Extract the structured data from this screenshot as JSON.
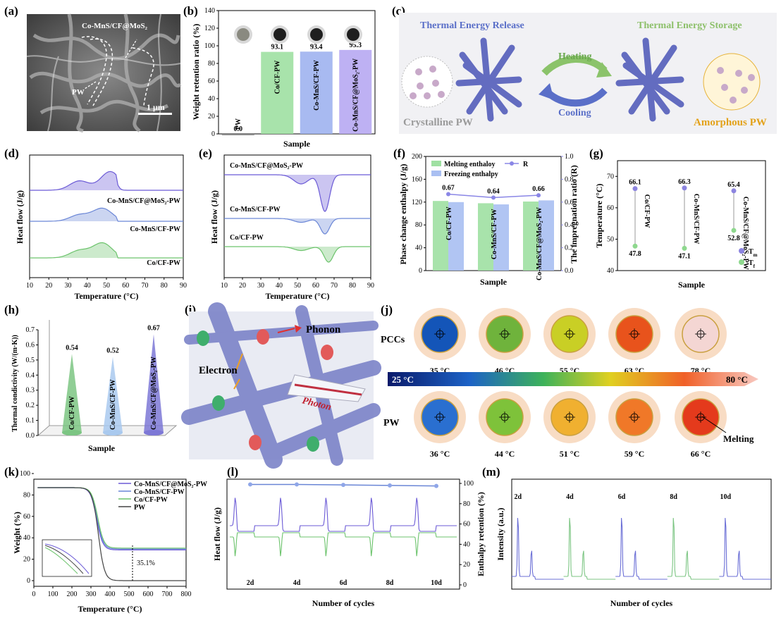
{
  "panel_labels": [
    "(a)",
    "(b)",
    "(c)",
    "(d)",
    "(e)",
    "(f)",
    "(g)",
    "(h)",
    "(i)",
    "(j)",
    "(k)",
    "(l)",
    "(m)"
  ],
  "a": {
    "label": "Co-MnS/CF@MoS₂",
    "pw": "PW",
    "scale": "1 μm"
  },
  "b": {
    "type": "bar",
    "ylabel": "Weight retention ratio (%)",
    "xlabel": "Sample",
    "categories": [
      "PW",
      "Co/CF-PW",
      "Co-MnS/CF-PW",
      "Co-MnS/CF@MoS₂-PW"
    ],
    "values": [
      0.0,
      93.1,
      93.4,
      95.3
    ],
    "value_labels": [
      "0.0",
      "93.1",
      "93.4",
      "95.3"
    ],
    "ylim": [
      0,
      140
    ],
    "yticks": [
      "0",
      "20",
      "40",
      "60",
      "80",
      "100",
      "120",
      "140"
    ],
    "colors": [
      "#888888",
      "#9fe0a2",
      "#9fb2f0",
      "#b7a9f2"
    ]
  },
  "c": {
    "release": "Thermal Energy Release",
    "storage": "Thermal Energy Storage",
    "heating": "Heating",
    "cooling": "Cooling",
    "crystalline": "Crystalline PW",
    "amorphous": "Amorphous PW",
    "colors": {
      "release": "#5a6fc8",
      "storage": "#8dc06a",
      "amorphous": "#e3a21a",
      "crystalline": "#9a9a9a"
    }
  },
  "d": {
    "type": "line",
    "ylabel": "Heat flow (J/g)",
    "xlabel": "Temperature (°C)",
    "xlim": [
      10,
      90
    ],
    "xticks": [
      "10",
      "20",
      "30",
      "40",
      "50",
      "60",
      "70",
      "80",
      "90"
    ],
    "series": [
      {
        "name": "Co-MnS/CF@MoS₂-PW",
        "peak_T": 52,
        "color": "#6b5ad6"
      },
      {
        "name": "Co-MnS/CF-PW",
        "peak_T": 48,
        "color": "#6a86d6"
      },
      {
        "name": "Co/CF-PW",
        "peak_T": 48,
        "color": "#6cc36c"
      }
    ]
  },
  "e": {
    "type": "line",
    "ylabel": "Heat flow (J/g)",
    "xlabel": "Temperature (°C)",
    "xlim": [
      10,
      90
    ],
    "xticks": [
      "10",
      "20",
      "30",
      "40",
      "50",
      "60",
      "70",
      "80",
      "90"
    ],
    "series": [
      {
        "name": "Co-MnS/CF@MoS₂-PW",
        "peak_T": 65,
        "color": "#6b5ad6"
      },
      {
        "name": "Co-MnS/CF-PW",
        "peak_T": 65,
        "color": "#6a86d6"
      },
      {
        "name": "Co/CF-PW",
        "peak_T": 67,
        "color": "#6cc36c"
      }
    ]
  },
  "f": {
    "type": "bar",
    "ylabel": "Phase change enthalpy (J/g)",
    "y2label": "The impregnation ratio (R)",
    "xlabel": "Sample",
    "categories": [
      "Co/CF-PW",
      "Co-MnS/CF-PW",
      "Co-MnS/CF@MoS₂-PW"
    ],
    "series": [
      {
        "name": "Melting enthaloy",
        "values": [
          122,
          118,
          121
        ],
        "color": "#9fe0a2"
      },
      {
        "name": "Freezing enthalpy",
        "values": [
          120,
          116,
          123
        ],
        "color": "#a9bff2"
      }
    ],
    "R": {
      "name": "R",
      "values": [
        0.67,
        0.64,
        0.66
      ],
      "labels": [
        "0.67",
        "0.64",
        "0.66"
      ],
      "color": "#8a86e6"
    },
    "ylim": [
      0,
      200
    ],
    "yticks": [
      "0",
      "40",
      "80",
      "120",
      "160",
      "200"
    ],
    "y2lim": [
      0,
      1.0
    ],
    "y2ticks": [
      "0.0",
      "0.2",
      "0.4",
      "0.6",
      "0.8",
      "1.0"
    ]
  },
  "g": {
    "type": "scatter",
    "ylabel": "Temperature (°C)",
    "xlabel": "Sample",
    "categories": [
      "Co/CF-PW",
      "Co-MnS/CF-PW",
      "Co-MnS/CF@MoS₂-PW"
    ],
    "Tm": [
      66.1,
      66.3,
      65.4
    ],
    "Tf": [
      47.8,
      47.1,
      52.8
    ],
    "Tm_labels": [
      "66.1",
      "66.3",
      "65.4"
    ],
    "Tf_labels": [
      "47.8",
      "47.1",
      "52.8"
    ],
    "legend": [
      "T",
      "T"
    ],
    "legend_sub": [
      "m",
      "f"
    ],
    "ylim": [
      40,
      75
    ],
    "yticks": [
      "40",
      "50",
      "60",
      "70"
    ],
    "colors": {
      "Tm": "#8c84e0",
      "Tf": "#8ed88e"
    }
  },
  "h": {
    "type": "bar",
    "ylabel": "Thermal condictivity (W/(m·K))",
    "xlabel": "Sample",
    "categories": [
      "Co/CF-PW",
      "Co-MnS/CF-PW",
      "Co-MnS/CF@MoS₂-PW"
    ],
    "values": [
      0.54,
      0.52,
      0.67
    ],
    "value_labels": [
      "0.54",
      "0.52",
      "0.67"
    ],
    "ylim": [
      0,
      0.7
    ],
    "yticks": [
      "0.0",
      "0.1",
      "0.2",
      "0.3",
      "0.4",
      "0.5",
      "0.6",
      "0.7"
    ],
    "colors": [
      "#7cc583",
      "#a9c9ee",
      "#7d78d6"
    ]
  },
  "i": {
    "phonon": "Phonon",
    "electron": "Electron",
    "photon": "Photon"
  },
  "j": {
    "row1": "PCCs",
    "row2": "PW",
    "pccs_temps": [
      "35 °C",
      "46 °C",
      "55 °C",
      "63 °C",
      "78 °C"
    ],
    "pw_temps": [
      "36 °C",
      "44 °C",
      "51 °C",
      "59 °C",
      "66 °C"
    ],
    "scale_min": "25 °C",
    "scale_max": "80 °C",
    "melting": "Melting",
    "pccs_colors": [
      "#1455b8",
      "#6fb33c",
      "#c9cf25",
      "#e8531c",
      "#f4d6d3"
    ],
    "pw_colors": [
      "#2a6fd0",
      "#7ec23a",
      "#f0b030",
      "#f07828",
      "#e43a1c"
    ]
  },
  "k": {
    "type": "line",
    "ylabel": "Weight (%)",
    "xlabel": "Temperature (°C)",
    "xlim": [
      0,
      800
    ],
    "xticks": [
      "0",
      "100",
      "200",
      "300",
      "400",
      "500",
      "600",
      "700",
      "800"
    ],
    "ylim": [
      0,
      100
    ],
    "yticks": [
      "0",
      "20",
      "40",
      "60",
      "80",
      "100"
    ],
    "series": [
      {
        "name": "Co-MnS/CF@MoS₂-PW",
        "color": "#6b5ad6",
        "residue": 33
      },
      {
        "name": "Co-MnS/CF-PW",
        "color": "#6a86d6",
        "residue": 34
      },
      {
        "name": "Co/CF-PW",
        "color": "#6cc36c",
        "residue": 35
      },
      {
        "name": "PW",
        "color": "#444444",
        "residue": 0
      }
    ],
    "annotation": "35.1%"
  },
  "l": {
    "ylabel": "Heat flow (J/g)",
    "y2label": "Enthalpy retention (%)",
    "xlabel": "Number of cycles",
    "cycles": [
      "2d",
      "4d",
      "6d",
      "8d",
      "10d"
    ],
    "retention": [
      99,
      99,
      98.5,
      98,
      97.5
    ],
    "y2lim": [
      0,
      100
    ],
    "y2ticks": [
      "0",
      "20",
      "40",
      "60",
      "80",
      "100"
    ]
  },
  "m": {
    "ylabel": "Intensity (a.u.)",
    "xlabel": "Number of cycles",
    "cycles": [
      "2d",
      "4d",
      "6d",
      "8d",
      "10d"
    ]
  }
}
